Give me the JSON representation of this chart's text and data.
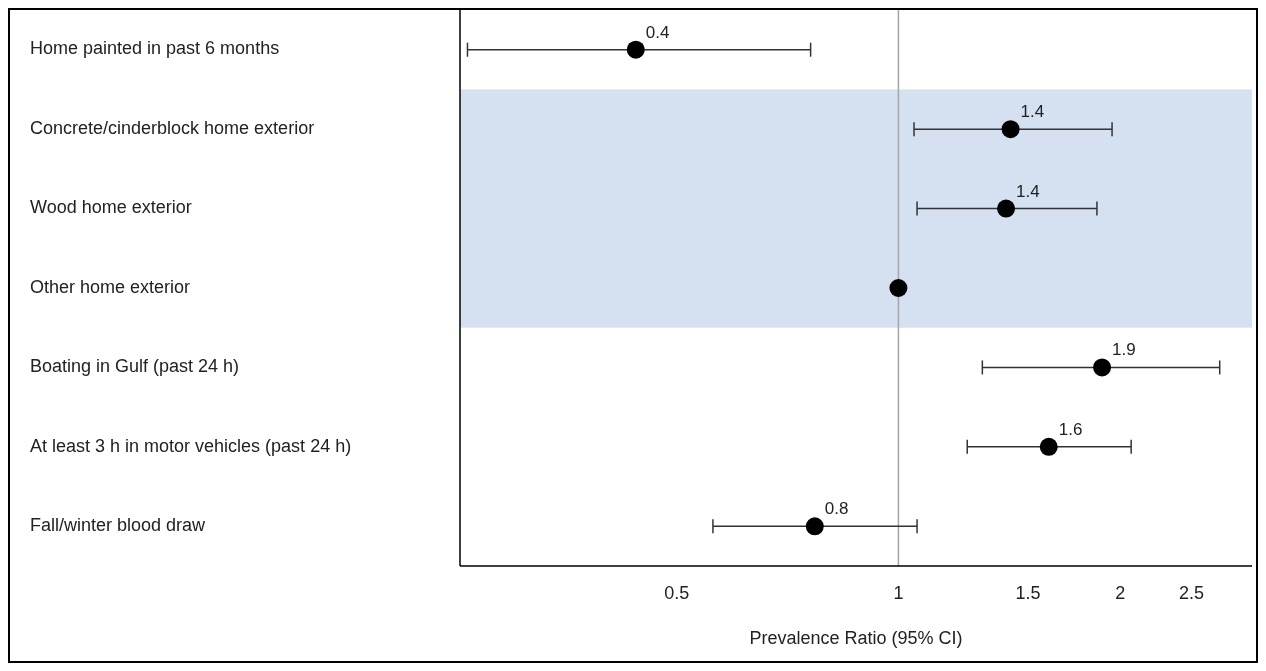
{
  "chart_data": {
    "type": "scatter",
    "orientation": "horizontal",
    "xlabel": "Prevalence Ratio (95% CI)",
    "categories": [
      "Home painted in past 6 months",
      "Concrete/cinderblock home exterior",
      "Wood home exterior",
      "Other home exterior",
      "Boating in Gulf (past 24 h)",
      "At least 3 h in motor vehicles (past 24 h)",
      "Fall/winter blood draw"
    ],
    "values": [
      0.44,
      1.42,
      1.4,
      1,
      1.89,
      1.6,
      0.77
    ],
    "errors": [
      [
        0.26,
        0.76
      ],
      [
        1.05,
        1.95
      ],
      [
        1.06,
        1.86
      ],
      null,
      [
        1.3,
        2.73
      ],
      [
        1.24,
        2.07
      ],
      [
        0.56,
        1.06
      ]
    ],
    "value_labels": [
      "0.4",
      "1.4",
      "1.4",
      null,
      "1.9",
      "1.6",
      "0.8"
    ],
    "color": "#000000",
    "marker": "circle",
    "log": "x",
    "xlim": [
      0.254,
      3.02
    ],
    "xticks": [
      0.5,
      1,
      1.5,
      2,
      2.5
    ],
    "ref_lines": [
      {
        "axis": "x",
        "value": 1,
        "color": "#a6a6a6"
      }
    ],
    "bands": [
      {
        "axis": "y",
        "from": "Concrete/cinderblock home exterior",
        "to": "Other home exterior",
        "color": "#d5e1f1"
      }
    ],
    "grid": false
  }
}
